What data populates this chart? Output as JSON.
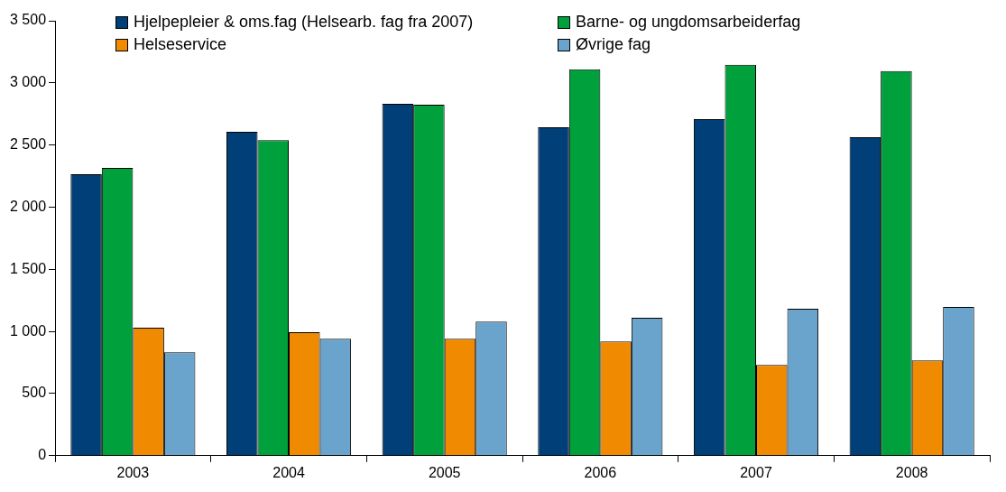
{
  "chart_data": {
    "type": "bar",
    "categories": [
      "2003",
      "2004",
      "2005",
      "2006",
      "2007",
      "2008"
    ],
    "series": [
      {
        "name": "Hjelpepleier & oms.fag (Helsearb. fag fra 2007)",
        "color": "#003f78",
        "values": [
          2265,
          2606,
          2832,
          2642,
          2708,
          2562
        ]
      },
      {
        "name": "Barne- og ungdomsarbeiderfag",
        "color": "#00a03c",
        "values": [
          2316,
          2540,
          2825,
          3110,
          3146,
          3095
        ]
      },
      {
        "name": "Helseservice",
        "color": "#f08a00",
        "values": [
          1030,
          993,
          942,
          920,
          730,
          766
        ]
      },
      {
        "name": "Øvrige fag",
        "color": "#6aa3cc",
        "values": [
          833,
          942,
          1080,
          1110,
          1182,
          1197
        ]
      }
    ],
    "ylim": [
      0,
      3500
    ],
    "yticks": [
      0,
      500,
      {
        "value": 1000,
        "label": "1 000"
      },
      {
        "value": 1500,
        "label": "1 500"
      },
      {
        "value": 2000,
        "label": "2 000"
      },
      {
        "value": 2500,
        "label": "2 500"
      },
      {
        "value": 3000,
        "label": "3 000"
      },
      {
        "value": 3500,
        "label": "3 500"
      }
    ],
    "grid": false,
    "legend": "top"
  }
}
